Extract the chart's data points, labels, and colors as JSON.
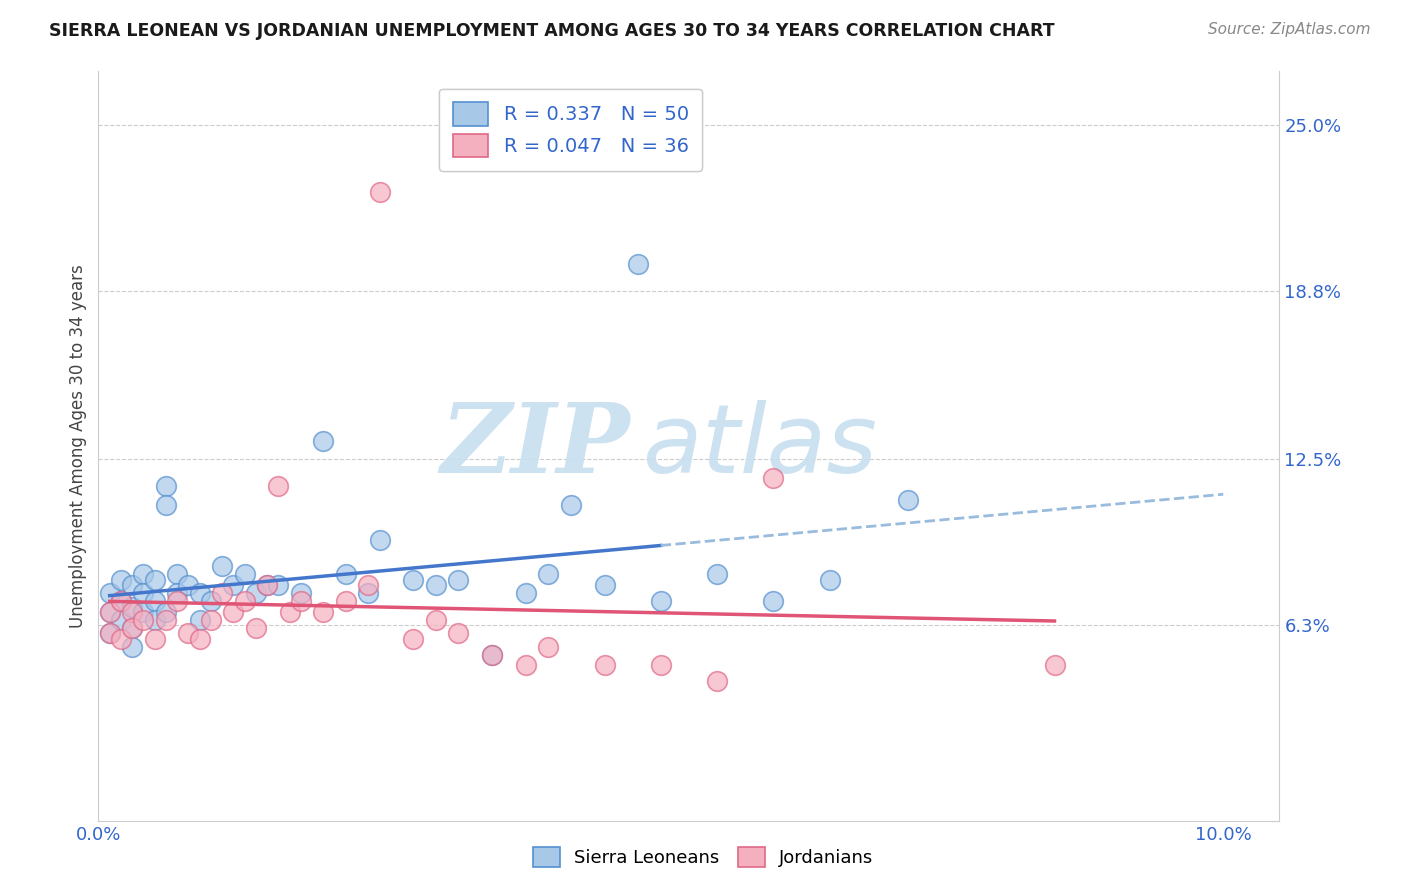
{
  "title": "SIERRA LEONEAN VS JORDANIAN UNEMPLOYMENT AMONG AGES 30 TO 34 YEARS CORRELATION CHART",
  "source": "Source: ZipAtlas.com",
  "ylabel": "Unemployment Among Ages 30 to 34 years",
  "xlim": [
    0.0,
    0.105
  ],
  "ylim": [
    -0.01,
    0.27
  ],
  "xtick_values": [
    0.0,
    0.02,
    0.04,
    0.06,
    0.08,
    0.1
  ],
  "xticklabels": [
    "0.0%",
    "",
    "",
    "",
    "",
    "10.0%"
  ],
  "ytick_values": [
    0.063,
    0.125,
    0.188,
    0.25
  ],
  "ytick_labels": [
    "6.3%",
    "12.5%",
    "18.8%",
    "25.0%"
  ],
  "sl_R": 0.337,
  "sl_N": 50,
  "jo_R": 0.047,
  "jo_N": 36,
  "sl_color": "#a8c8e8",
  "jo_color": "#f5b0c0",
  "sl_edge_color": "#5590d0",
  "jo_edge_color": "#e06888",
  "sl_line_color": "#4477cc",
  "jo_line_color": "#e05575",
  "dash_color": "#99bbdd",
  "watermark_color": "#c8dff0",
  "sl_x": [
    0.001,
    0.001,
    0.001,
    0.002,
    0.002,
    0.002,
    0.003,
    0.003,
    0.003,
    0.003,
    0.004,
    0.004,
    0.004,
    0.005,
    0.005,
    0.005,
    0.006,
    0.006,
    0.006,
    0.007,
    0.007,
    0.008,
    0.009,
    0.009,
    0.01,
    0.011,
    0.012,
    0.013,
    0.014,
    0.015,
    0.016,
    0.018,
    0.02,
    0.022,
    0.024,
    0.025,
    0.028,
    0.03,
    0.032,
    0.035,
    0.038,
    0.04,
    0.042,
    0.045,
    0.048,
    0.05,
    0.055,
    0.06,
    0.065,
    0.072
  ],
  "sl_y": [
    0.075,
    0.068,
    0.06,
    0.08,
    0.072,
    0.065,
    0.078,
    0.07,
    0.062,
    0.055,
    0.082,
    0.075,
    0.068,
    0.08,
    0.072,
    0.065,
    0.115,
    0.108,
    0.068,
    0.082,
    0.075,
    0.078,
    0.075,
    0.065,
    0.072,
    0.085,
    0.078,
    0.082,
    0.075,
    0.078,
    0.078,
    0.075,
    0.132,
    0.082,
    0.075,
    0.095,
    0.08,
    0.078,
    0.08,
    0.052,
    0.075,
    0.082,
    0.108,
    0.078,
    0.198,
    0.072,
    0.082,
    0.072,
    0.08,
    0.11
  ],
  "jo_x": [
    0.001,
    0.001,
    0.002,
    0.002,
    0.003,
    0.003,
    0.004,
    0.005,
    0.006,
    0.007,
    0.008,
    0.009,
    0.01,
    0.011,
    0.012,
    0.013,
    0.014,
    0.015,
    0.016,
    0.017,
    0.018,
    0.02,
    0.022,
    0.024,
    0.025,
    0.028,
    0.03,
    0.032,
    0.035,
    0.038,
    0.04,
    0.045,
    0.05,
    0.055,
    0.06,
    0.085
  ],
  "jo_y": [
    0.068,
    0.06,
    0.072,
    0.058,
    0.068,
    0.062,
    0.065,
    0.058,
    0.065,
    0.072,
    0.06,
    0.058,
    0.065,
    0.075,
    0.068,
    0.072,
    0.062,
    0.078,
    0.115,
    0.068,
    0.072,
    0.068,
    0.072,
    0.078,
    0.225,
    0.058,
    0.065,
    0.06,
    0.052,
    0.048,
    0.055,
    0.048,
    0.048,
    0.042,
    0.118,
    0.048
  ]
}
